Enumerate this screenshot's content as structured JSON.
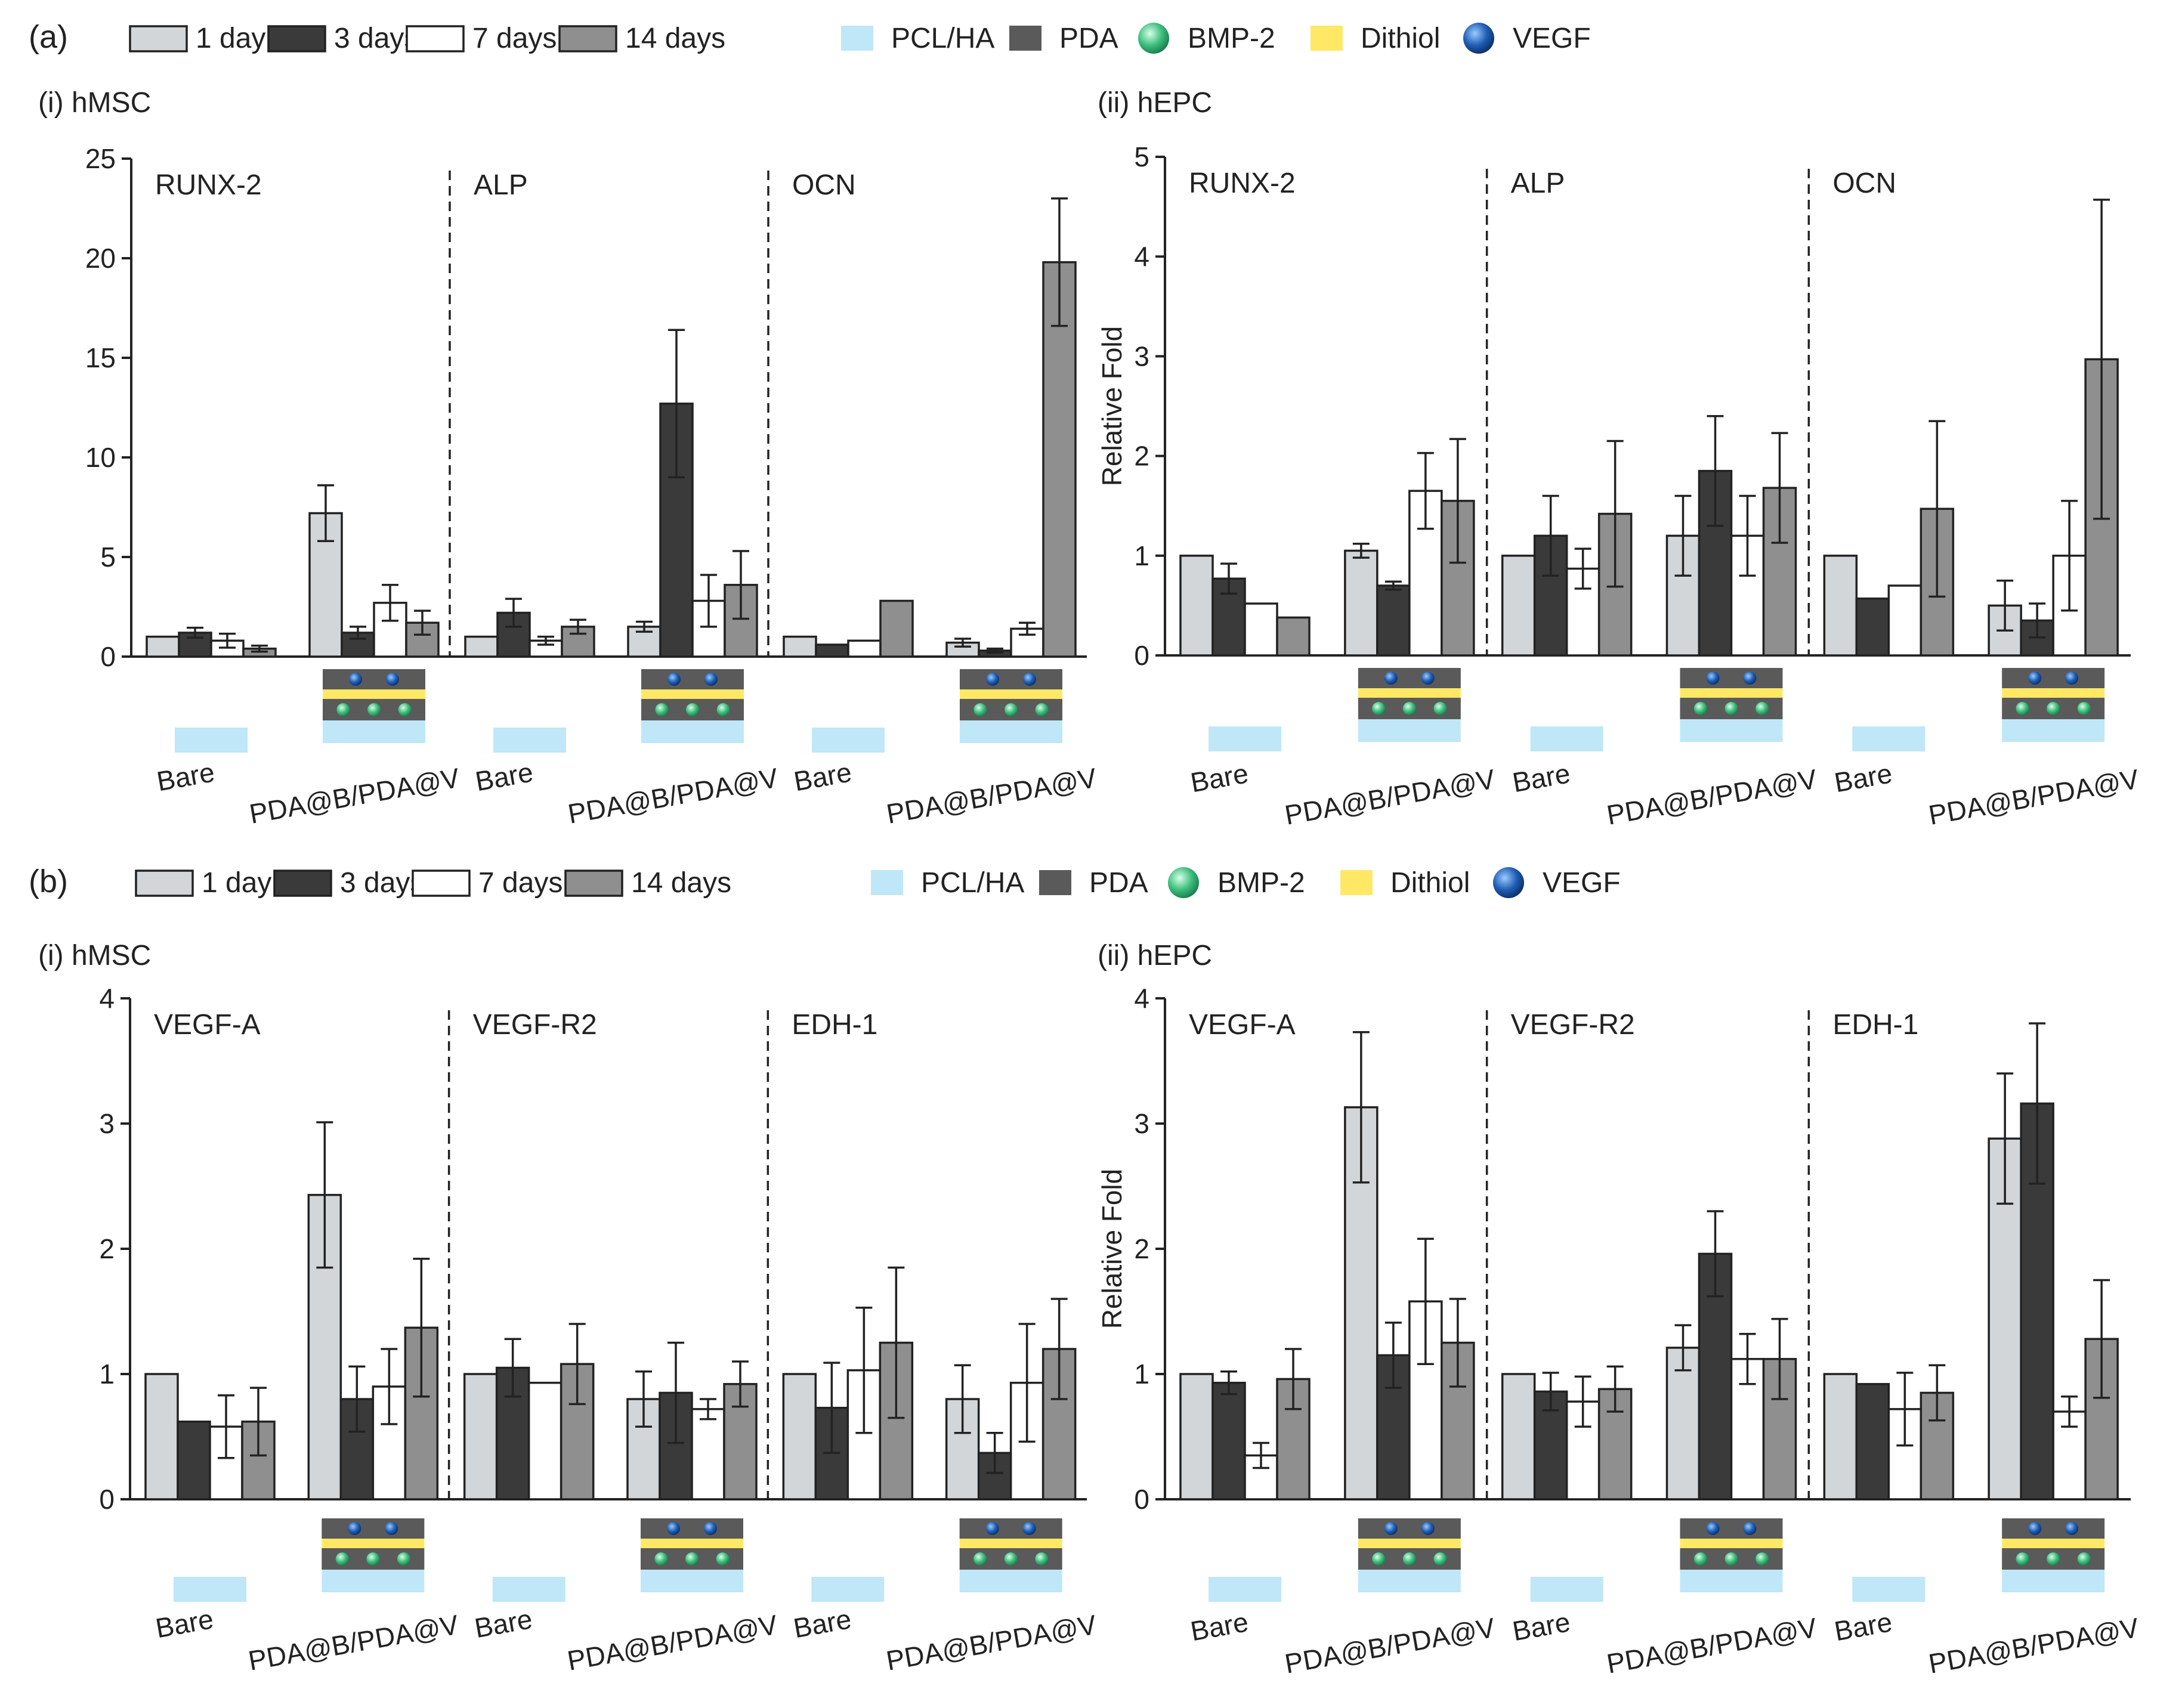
{
  "series_legend": {
    "panel_a_label": "(a)",
    "panel_b_label": "(b)",
    "items": [
      {
        "label": "1 day",
        "color": "#d3d6d8"
      },
      {
        "label": "3 days",
        "color": "#3a3a3a"
      },
      {
        "label": "7 days",
        "color": "#ffffff"
      },
      {
        "label": "14 days",
        "color": "#8f8f8f"
      }
    ]
  },
  "material_legend": {
    "items": [
      {
        "label": "PCL/HA",
        "icon": "pcl-ha-swatch-icon",
        "color": "#bfe7f7"
      },
      {
        "label": "PDA",
        "icon": "pda-swatch-icon",
        "color": "#5a5a5a"
      },
      {
        "label": "BMP-2",
        "icon": "bmp2-sphere-icon",
        "color": "#3fbf7f"
      },
      {
        "label": "Dithiol",
        "icon": "dithiol-swatch-icon",
        "color": "#ffe866"
      },
      {
        "label": "VEGF",
        "icon": "vegf-sphere-icon",
        "color": "#1f5fb5"
      }
    ]
  },
  "group_labels": [
    "Bare",
    "PDA@B/PDA@V"
  ],
  "chart_data": [
    {
      "type": "bar",
      "panel": "(a)",
      "title": "(i) hMSC",
      "ylabel": "",
      "ylim": [
        0,
        25
      ],
      "yticks": [
        "0",
        "5",
        "10",
        "15",
        "20",
        "25"
      ],
      "series": [
        "1 day",
        "3 days",
        "7 days",
        "14 days"
      ],
      "sections": [
        {
          "gene": "RUNX-2",
          "groups": [
            {
              "label": "Bare",
              "values": [
                1.0,
                1.2,
                0.8,
                0.4
              ],
              "errors": [
                0,
                0.25,
                0.35,
                0.15
              ]
            },
            {
              "label": "PDA@B/PDA@V",
              "values": [
                7.2,
                1.2,
                2.7,
                1.7
              ],
              "errors": [
                1.4,
                0.3,
                0.9,
                0.6
              ]
            }
          ]
        },
        {
          "gene": "ALP",
          "groups": [
            {
              "label": "Bare",
              "values": [
                1.0,
                2.2,
                0.8,
                1.5
              ],
              "errors": [
                0,
                0.7,
                0.2,
                0.35
              ]
            },
            {
              "label": "PDA@B/PDA@V",
              "values": [
                1.5,
                12.7,
                2.8,
                3.6
              ],
              "errors": [
                0.25,
                3.7,
                1.3,
                1.7
              ]
            }
          ]
        },
        {
          "gene": "OCN",
          "groups": [
            {
              "label": "Bare",
              "values": [
                1.0,
                0.6,
                0.8,
                2.8
              ],
              "errors": [
                0,
                0,
                0,
                0
              ]
            },
            {
              "label": "PDA@B/PDA@V",
              "values": [
                0.7,
                0.3,
                1.4,
                19.8
              ],
              "errors": [
                0.2,
                0.1,
                0.3,
                3.2
              ]
            }
          ]
        }
      ]
    },
    {
      "type": "bar",
      "panel": "(a)",
      "title": "(ii) hEPC",
      "ylabel": "Relative Fold",
      "ylim": [
        0,
        5
      ],
      "yticks": [
        "0",
        "1",
        "2",
        "3",
        "4",
        "5"
      ],
      "series": [
        "1 day",
        "3 days",
        "7 days",
        "14 days"
      ],
      "sections": [
        {
          "gene": "RUNX-2",
          "groups": [
            {
              "label": "Bare",
              "values": [
                1.0,
                0.77,
                0.52,
                0.38
              ],
              "errors": [
                0,
                0.15,
                0,
                0
              ]
            },
            {
              "label": "PDA@B/PDA@V",
              "values": [
                1.05,
                0.7,
                1.65,
                1.55
              ],
              "errors": [
                0.07,
                0.04,
                0.38,
                0.62
              ]
            }
          ]
        },
        {
          "gene": "ALP",
          "groups": [
            {
              "label": "Bare",
              "values": [
                1.0,
                1.2,
                0.87,
                1.42
              ],
              "errors": [
                0,
                0.4,
                0.2,
                0.73
              ]
            },
            {
              "label": "PDA@B/PDA@V",
              "values": [
                1.2,
                1.85,
                1.2,
                1.68
              ],
              "errors": [
                0.4,
                0.55,
                0.4,
                0.55
              ]
            }
          ]
        },
        {
          "gene": "OCN",
          "groups": [
            {
              "label": "Bare",
              "values": [
                1.0,
                0.57,
                0.7,
                1.47
              ],
              "errors": [
                0,
                0,
                0,
                0.88
              ]
            },
            {
              "label": "PDA@B/PDA@V",
              "values": [
                0.5,
                0.35,
                1.0,
                2.97
              ],
              "errors": [
                0.25,
                0.17,
                0.55,
                1.6
              ]
            }
          ]
        }
      ]
    },
    {
      "type": "bar",
      "panel": "(b)",
      "title": "(i) hMSC",
      "ylabel": "",
      "ylim": [
        0,
        4
      ],
      "yticks": [
        "0",
        "1",
        "2",
        "3",
        "4"
      ],
      "series": [
        "1 day",
        "3 days",
        "7 days",
        "14 days"
      ],
      "sections": [
        {
          "gene": "VEGF-A",
          "groups": [
            {
              "label": "Bare",
              "values": [
                1.0,
                0.62,
                0.58,
                0.62
              ],
              "errors": [
                0,
                0,
                0.25,
                0.27
              ]
            },
            {
              "label": "PDA@B/PDA@V",
              "values": [
                2.43,
                0.8,
                0.9,
                1.37
              ],
              "errors": [
                0.58,
                0.26,
                0.3,
                0.55
              ]
            }
          ]
        },
        {
          "gene": "VEGF-R2",
          "groups": [
            {
              "label": "Bare",
              "values": [
                1.0,
                1.05,
                0.93,
                1.08
              ],
              "errors": [
                0,
                0.23,
                0,
                0.32
              ]
            },
            {
              "label": "PDA@B/PDA@V",
              "values": [
                0.8,
                0.85,
                0.72,
                0.92
              ],
              "errors": [
                0.22,
                0.4,
                0.08,
                0.18
              ]
            }
          ]
        },
        {
          "gene": "EDH-1",
          "groups": [
            {
              "label": "Bare",
              "values": [
                1.0,
                0.73,
                1.03,
                1.25
              ],
              "errors": [
                0,
                0.36,
                0.5,
                0.6
              ]
            },
            {
              "label": "PDA@B/PDA@V",
              "values": [
                0.8,
                0.37,
                0.93,
                1.2
              ],
              "errors": [
                0.27,
                0.16,
                0.47,
                0.4
              ]
            }
          ]
        }
      ]
    },
    {
      "type": "bar",
      "panel": "(b)",
      "title": "(ii) hEPC",
      "ylabel": "Relative Fold",
      "ylim": [
        0,
        4
      ],
      "yticks": [
        "0",
        "1",
        "2",
        "3",
        "4"
      ],
      "series": [
        "1 day",
        "3 days",
        "7 days",
        "14 days"
      ],
      "sections": [
        {
          "gene": "VEGF-A",
          "groups": [
            {
              "label": "Bare",
              "values": [
                1.0,
                0.93,
                0.35,
                0.96
              ],
              "errors": [
                0,
                0.09,
                0.1,
                0.24
              ]
            },
            {
              "label": "PDA@B/PDA@V",
              "values": [
                3.13,
                1.15,
                1.58,
                1.25
              ],
              "errors": [
                0.6,
                0.26,
                0.5,
                0.35
              ]
            }
          ]
        },
        {
          "gene": "VEGF-R2",
          "groups": [
            {
              "label": "Bare",
              "values": [
                1.0,
                0.86,
                0.78,
                0.88
              ],
              "errors": [
                0,
                0.15,
                0.2,
                0.18
              ]
            },
            {
              "label": "PDA@B/PDA@V",
              "values": [
                1.21,
                1.96,
                1.12,
                1.12
              ],
              "errors": [
                0.18,
                0.34,
                0.2,
                0.32
              ]
            }
          ]
        },
        {
          "gene": "EDH-1",
          "groups": [
            {
              "label": "Bare",
              "values": [
                1.0,
                0.92,
                0.72,
                0.85
              ],
              "errors": [
                0,
                0,
                0.29,
                0.22
              ]
            },
            {
              "label": "PDA@B/PDA@V",
              "values": [
                2.88,
                3.16,
                0.7,
                1.28
              ],
              "errors": [
                0.52,
                0.64,
                0.12,
                0.47
              ]
            }
          ]
        }
      ]
    }
  ]
}
